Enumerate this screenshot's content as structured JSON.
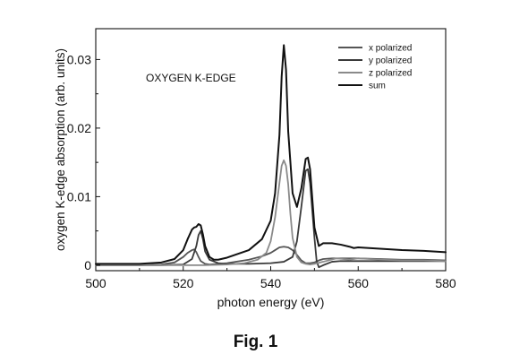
{
  "caption": "Fig. 1",
  "chart_data": {
    "type": "line",
    "annotation": "OXYGEN K-EDGE",
    "xlabel": "photon energy (eV)",
    "ylabel": "oxygen K-edge absorption (arb. units)",
    "xlim": [
      500,
      580
    ],
    "ylim": [
      -0.0008,
      0.0345
    ],
    "xticks": [
      "500",
      "520",
      "540",
      "560",
      "580"
    ],
    "yticks": [
      "0",
      "0.01",
      "0.02",
      "0.03"
    ],
    "grid": false,
    "legend_position": "top-right",
    "series": [
      {
        "name": "x polarized",
        "color": "#555555",
        "x": [
          500,
          505,
          510,
          515,
          518,
          520,
          521,
          522,
          522.5,
          523,
          523.5,
          524,
          525,
          526,
          528,
          530,
          535,
          538,
          540,
          541,
          542,
          543,
          544,
          545,
          546,
          547,
          548,
          549,
          550,
          551,
          552,
          554,
          556,
          558,
          560,
          565,
          570,
          575,
          580
        ],
        "y": [
          0,
          0,
          0,
          0.0001,
          0.0004,
          0.0012,
          0.0018,
          0.0022,
          0.0023,
          0.0019,
          0.0012,
          0.0006,
          0.0002,
          0.0001,
          0.0002,
          0.0003,
          0.0008,
          0.0013,
          0.0018,
          0.0022,
          0.0026,
          0.0027,
          0.0026,
          0.0022,
          0.0015,
          0.0007,
          0.0003,
          0.0003,
          0.0004,
          0.0007,
          0.0009,
          0.001,
          0.001,
          0.001,
          0.001,
          0.0009,
          0.0008,
          0.0008,
          0.0007
        ]
      },
      {
        "name": "y polarized",
        "color": "#3a3a3a",
        "x": [
          500,
          505,
          510,
          515,
          520,
          522,
          523,
          523.5,
          524,
          524.5,
          525,
          526,
          528,
          530,
          535,
          540,
          543,
          545,
          546,
          547,
          548,
          548.5,
          549,
          550,
          550.5,
          551,
          552,
          554,
          556,
          558,
          560,
          565,
          570,
          575,
          580
        ],
        "y": [
          0,
          0,
          0,
          0,
          0.0001,
          0.0009,
          0.0028,
          0.0044,
          0.005,
          0.0038,
          0.002,
          0.0008,
          0.0003,
          0.0002,
          0.0002,
          0.0003,
          0.0005,
          0.0012,
          0.0035,
          0.0085,
          0.0138,
          0.014,
          0.012,
          0.004,
          0.0006,
          -0.0003,
          0.0,
          0.0005,
          0.0006,
          0.0006,
          0.0006,
          0.0006,
          0.0006,
          0.0006,
          0.0006
        ]
      },
      {
        "name": "z polarized",
        "color": "#8a8a8a",
        "x": [
          500,
          505,
          510,
          515,
          520,
          525,
          530,
          534,
          537,
          539,
          540,
          541,
          542,
          542.5,
          543,
          543.5,
          544,
          544.5,
          545,
          546,
          547,
          548,
          549,
          550,
          552,
          555,
          558,
          560,
          565,
          570,
          575,
          580
        ],
        "y": [
          0,
          0,
          0,
          0,
          0,
          0,
          0.0001,
          0.0003,
          0.0008,
          0.0018,
          0.0035,
          0.007,
          0.012,
          0.0145,
          0.0153,
          0.0145,
          0.0118,
          0.0075,
          0.004,
          0.0012,
          0.0004,
          0.0002,
          0.0001,
          0.0002,
          0.0005,
          0.001,
          0.0008,
          0.001,
          0.0008,
          0.0007,
          0.0007,
          0.0006
        ]
      },
      {
        "name": "sum",
        "color": "#111111",
        "x": [
          500,
          505,
          510,
          515,
          518,
          520,
          521,
          522,
          522.5,
          523,
          523.5,
          524,
          524.5,
          525,
          526,
          527,
          528,
          530,
          535,
          538,
          540,
          541,
          542,
          542.5,
          543,
          543.5,
          544,
          545,
          546,
          547,
          548,
          548.5,
          549,
          550,
          551,
          552,
          554,
          556,
          558,
          559,
          560,
          565,
          570,
          575,
          580
        ],
        "y": [
          0.0002,
          0.0002,
          0.0002,
          0.0004,
          0.0009,
          0.0022,
          0.0038,
          0.0052,
          0.0055,
          0.0056,
          0.006,
          0.0058,
          0.0045,
          0.0028,
          0.0012,
          0.0008,
          0.0008,
          0.0011,
          0.0022,
          0.0038,
          0.0065,
          0.0105,
          0.019,
          0.0275,
          0.0321,
          0.0285,
          0.0195,
          0.0105,
          0.0085,
          0.0112,
          0.0155,
          0.0157,
          0.014,
          0.0055,
          0.0028,
          0.0032,
          0.0032,
          0.003,
          0.0027,
          0.0025,
          0.0026,
          0.0024,
          0.0022,
          0.0021,
          0.0019
        ]
      }
    ]
  }
}
